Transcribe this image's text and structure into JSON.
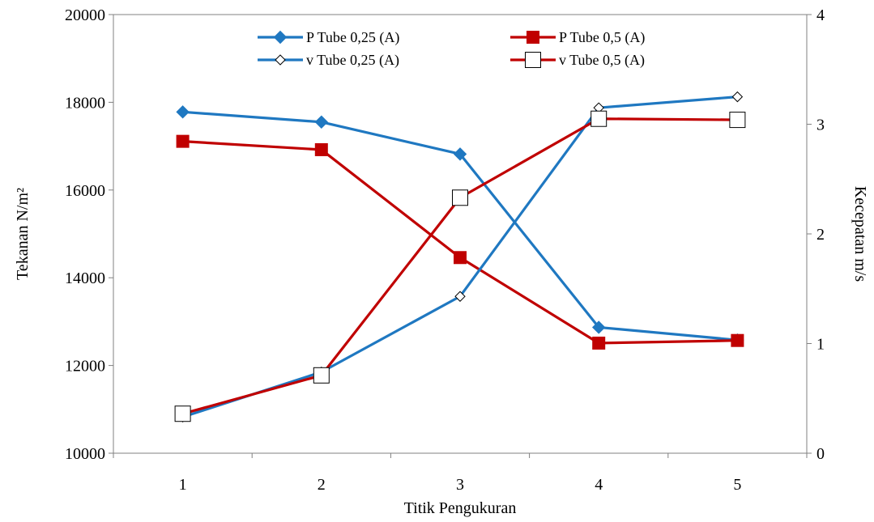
{
  "chart_data": {
    "type": "line",
    "title": "",
    "xlabel": "Titik Pengukuran",
    "ylabel_left": "Tekanan N/m²",
    "ylabel_right": "Kecepatan m/s",
    "categories": [
      "1",
      "2",
      "3",
      "4",
      "5"
    ],
    "y_left": {
      "range": [
        10000,
        20000
      ],
      "ticks": [
        10000,
        12000,
        14000,
        16000,
        18000,
        20000
      ]
    },
    "y_right": {
      "range": [
        0,
        4
      ],
      "ticks": [
        0,
        1,
        2,
        3,
        4
      ]
    },
    "grid": false,
    "legend_position": "top-center",
    "series": [
      {
        "name": "P Tube 0,25 (A)",
        "axis": "left",
        "color": "#1F78C1",
        "marker": "diamond-filled",
        "values": [
          17780,
          17550,
          16820,
          12870,
          12580
        ]
      },
      {
        "name": "P Tube 0,5 (A)",
        "axis": "left",
        "color": "#C00000",
        "marker": "square-filled",
        "values": [
          17110,
          16920,
          14460,
          12510,
          12570
        ]
      },
      {
        "name": "v Tube 0,25 (A)",
        "axis": "right",
        "color": "#1F78C1",
        "marker": "diamond-open",
        "values": [
          0.33,
          0.74,
          1.43,
          3.15,
          3.25
        ]
      },
      {
        "name": "v Tube 0,5 (A)",
        "axis": "right",
        "color": "#C00000",
        "marker": "square-open",
        "values": [
          0.36,
          0.71,
          2.33,
          3.05,
          3.04
        ]
      }
    ]
  }
}
